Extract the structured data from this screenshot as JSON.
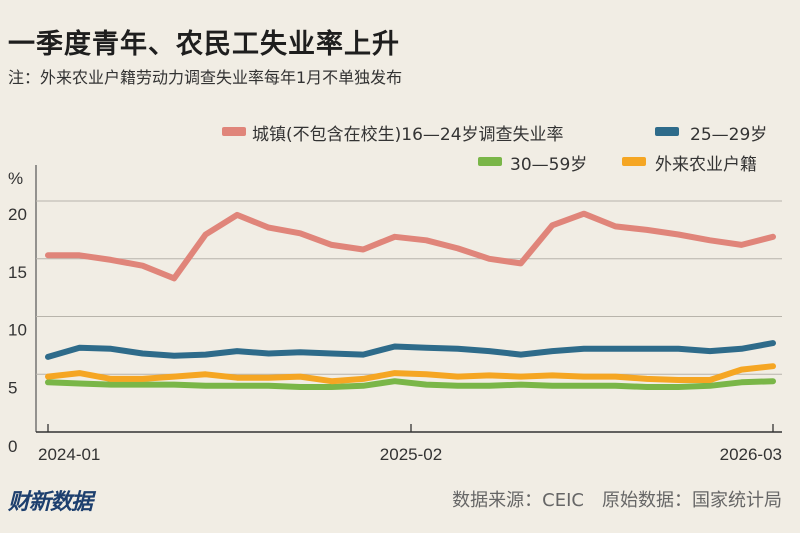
{
  "title": "一季度青年、农民工失业率上升",
  "note": "注：外来农业户籍劳动力调查失业率每年1月不单独发布",
  "logo": "财新数据",
  "source": "数据来源：CEIC　原始数据：国家统计局",
  "chart_data": {
    "type": "line",
    "title": "一季度青年、农民工失业率上升",
    "ylabel": "%",
    "ylim": [
      0,
      20
    ],
    "yticks": [
      0,
      5,
      10,
      15,
      20
    ],
    "grid": true,
    "legend_position": "top-right",
    "x_tick_labels": [
      "2024-01",
      "2025-02",
      "2026-03"
    ],
    "series": [
      {
        "name": "城镇(不包含在校生)16—24岁调查失业率",
        "color": "#e0857a",
        "values": [
          15.3,
          15.3,
          14.9,
          14.4,
          13.3,
          17.1,
          18.8,
          17.7,
          17.2,
          16.2,
          15.8,
          16.9,
          16.6,
          15.9,
          15.0,
          14.6,
          17.9,
          18.9,
          17.8,
          17.5,
          17.1,
          16.6,
          16.2,
          16.9
        ]
      },
      {
        "name": "25—29岁",
        "color": "#2e6b8a",
        "values": [
          6.5,
          7.3,
          7.2,
          6.8,
          6.6,
          6.7,
          7.0,
          6.8,
          6.9,
          6.8,
          6.7,
          7.4,
          7.3,
          7.2,
          7.0,
          6.7,
          7.0,
          7.2,
          7.2,
          7.2,
          7.2,
          7.0,
          7.2,
          7.7
        ]
      },
      {
        "name": "30—59岁",
        "color": "#7ab648",
        "values": [
          4.3,
          4.2,
          4.1,
          4.1,
          4.1,
          4.0,
          4.0,
          4.0,
          3.9,
          3.9,
          4.0,
          4.4,
          4.1,
          4.0,
          4.0,
          4.1,
          4.0,
          4.0,
          4.0,
          3.9,
          3.9,
          4.0,
          4.3,
          4.4
        ]
      },
      {
        "name": "外来农业户籍",
        "color": "#f5a623",
        "values": [
          4.8,
          5.1,
          4.6,
          4.6,
          4.8,
          5.0,
          4.7,
          4.7,
          4.8,
          4.4,
          4.6,
          5.1,
          5.0,
          4.8,
          4.9,
          4.8,
          4.9,
          4.8,
          4.8,
          4.6,
          4.5,
          4.5,
          5.4,
          5.7
        ]
      }
    ]
  }
}
